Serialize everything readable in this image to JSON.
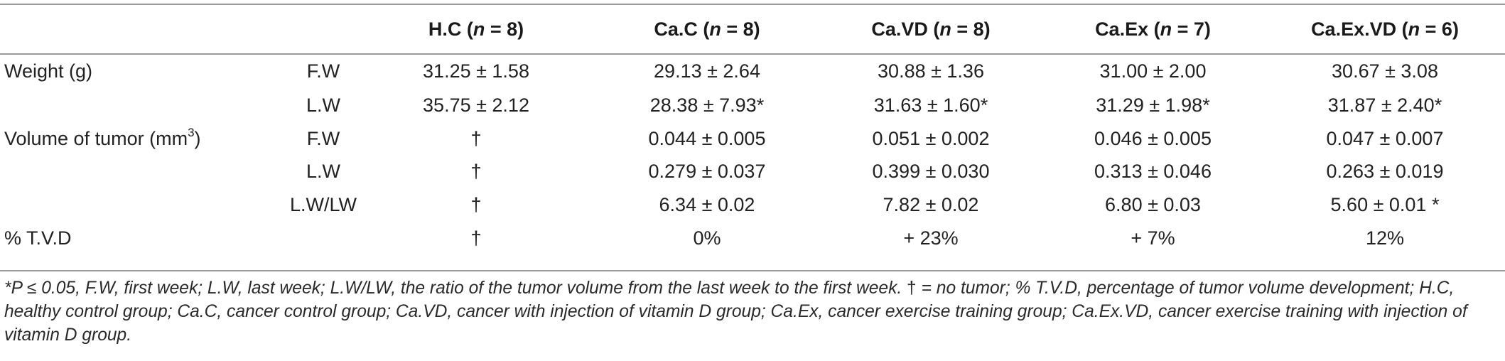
{
  "header": {
    "groups": [
      {
        "name": "H.C",
        "n": "8"
      },
      {
        "name": "Ca.C",
        "n": "8"
      },
      {
        "name": "Ca.VD",
        "n": "8"
      },
      {
        "name": "Ca.Ex",
        "n": "7"
      },
      {
        "name": "Ca.Ex.VD",
        "n": "6"
      }
    ],
    "n_label": "n",
    "n_eq": " = ",
    "open": " (",
    "close": ")"
  },
  "rows": {
    "weight_label": "Weight (g)",
    "volume_label_prefix": "Volume of tumor (mm",
    "volume_label_sup": "3",
    "volume_label_suffix": ")",
    "tvd_label": "% T.V.D",
    "sub_fw": "F.W",
    "sub_lw": "L.W",
    "sub_ratio": "L.W/LW",
    "weight_fw": [
      "31.25 ± 1.58",
      "29.13 ± 2.64",
      "30.88 ± 1.36",
      "31.00 ± 2.00",
      "30.67 ± 3.08"
    ],
    "weight_lw": [
      "35.75 ± 2.12",
      "28.38 ± 7.93*",
      "31.63 ± 1.60*",
      "31.29 ± 1.98*",
      "31.87 ± 2.40*"
    ],
    "volume_fw": [
      "†",
      "0.044 ± 0.005",
      "0.051 ± 0.002",
      "0.046 ± 0.005",
      "0.047 ± 0.007"
    ],
    "volume_lw": [
      "†",
      "0.279 ± 0.037",
      "0.399 ± 0.030",
      "0.313 ± 0.046",
      "0.263 ± 0.019"
    ],
    "volume_ratio": [
      "†",
      "6.34 ± 0.02",
      "7.82 ± 0.02",
      "6.80 ± 0.03",
      "5.60 ± 0.01 *"
    ],
    "tvd": [
      "†",
      "0%",
      "+  23%",
      "+ 7%",
      "12%"
    ]
  },
  "footnote": {
    "part1": "*P ≤ 0.05, F.W, first week; L.W, last week; L.W/LW, the ratio of the tumor volume from the last week to the first week. ",
    "dagger": "†",
    "part2": " = no tumor; % T.V.D, percentage of tumor volume development; H.C, healthy control group; Ca.C, cancer control group; Ca.VD, cancer with injection of vitamin D group; Ca.Ex, cancer exercise training group; Ca.Ex.VD, cancer exercise training with injection of vitamin D group."
  }
}
